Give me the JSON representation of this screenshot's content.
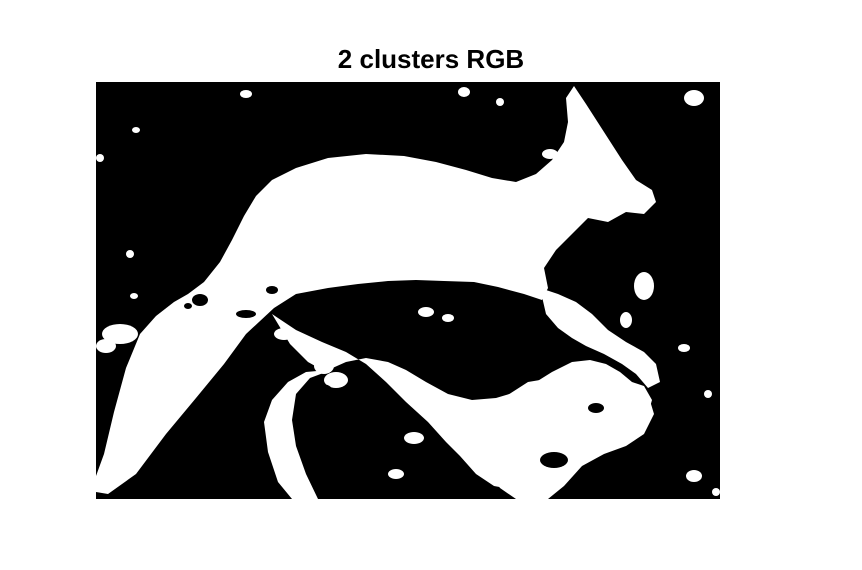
{
  "figure": {
    "title": "2 clusters RGB",
    "colors": {
      "background": "#ffffff",
      "cluster_dark": "#000000",
      "cluster_light": "#ffffff"
    }
  }
}
